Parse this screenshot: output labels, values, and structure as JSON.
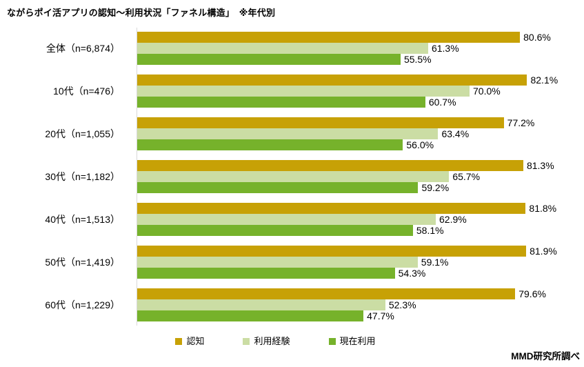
{
  "title": "ながらポイ活アプリの認知～利用状況「ファネル構造」　※年代別",
  "source": "MMD研究所調べ",
  "colors": {
    "awareness": "#c7a106",
    "usage_experience": "#cbdda4",
    "current_usage": "#76b22b",
    "axis_line": "#d9d9d9",
    "text": "#000000",
    "background": "#ffffff"
  },
  "chart_data": {
    "type": "bar",
    "orientation": "horizontal",
    "title": "ながらポイ活アプリの認知～利用状況「ファネル構造」　※年代別",
    "categories": [
      "全体（n=6,874）",
      "10代（n=476）",
      "20代（n=1,055）",
      "30代（n=1,182）",
      "40代（n=1,513）",
      "50代（n=1,419）",
      "60代（n=1,229）"
    ],
    "series": [
      {
        "key": "awareness",
        "name": "認知",
        "color": "#c7a106",
        "values": [
          80.6,
          82.1,
          77.2,
          81.3,
          81.8,
          81.9,
          79.6
        ]
      },
      {
        "key": "usage-experience",
        "name": "利用経験",
        "color": "#cbdda4",
        "values": [
          61.3,
          70.0,
          63.4,
          65.7,
          62.9,
          59.1,
          52.3
        ]
      },
      {
        "key": "current-usage",
        "name": "現在利用",
        "color": "#76b22b",
        "values": [
          55.5,
          60.7,
          56.0,
          59.2,
          58.1,
          54.3,
          47.7
        ]
      }
    ],
    "value_suffix": "%",
    "value_decimals": 1,
    "xlim": [
      0,
      90
    ],
    "grid": false,
    "data_labels": true,
    "legend_position": "bottom"
  }
}
